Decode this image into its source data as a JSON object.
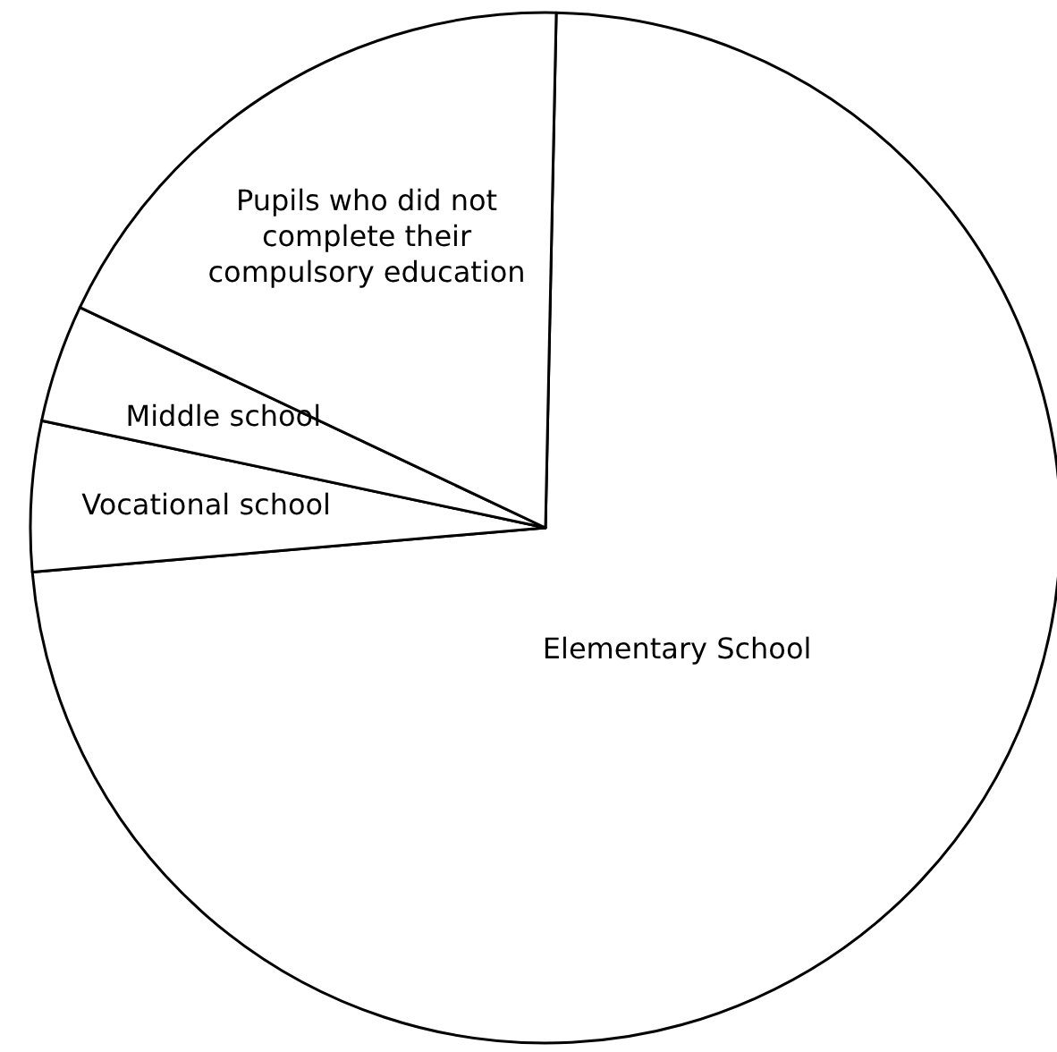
{
  "chart_data": {
    "type": "pie",
    "categories": [
      "Elementary School",
      "Vocational school",
      "Middle school",
      "Pupils who did not complete their compulsory education"
    ],
    "values": [
      73.3,
      4.7,
      3.7,
      18.3
    ],
    "colors": [
      "#ffffff",
      "#ffffff",
      "#ffffff",
      "#ffffff"
    ]
  }
}
